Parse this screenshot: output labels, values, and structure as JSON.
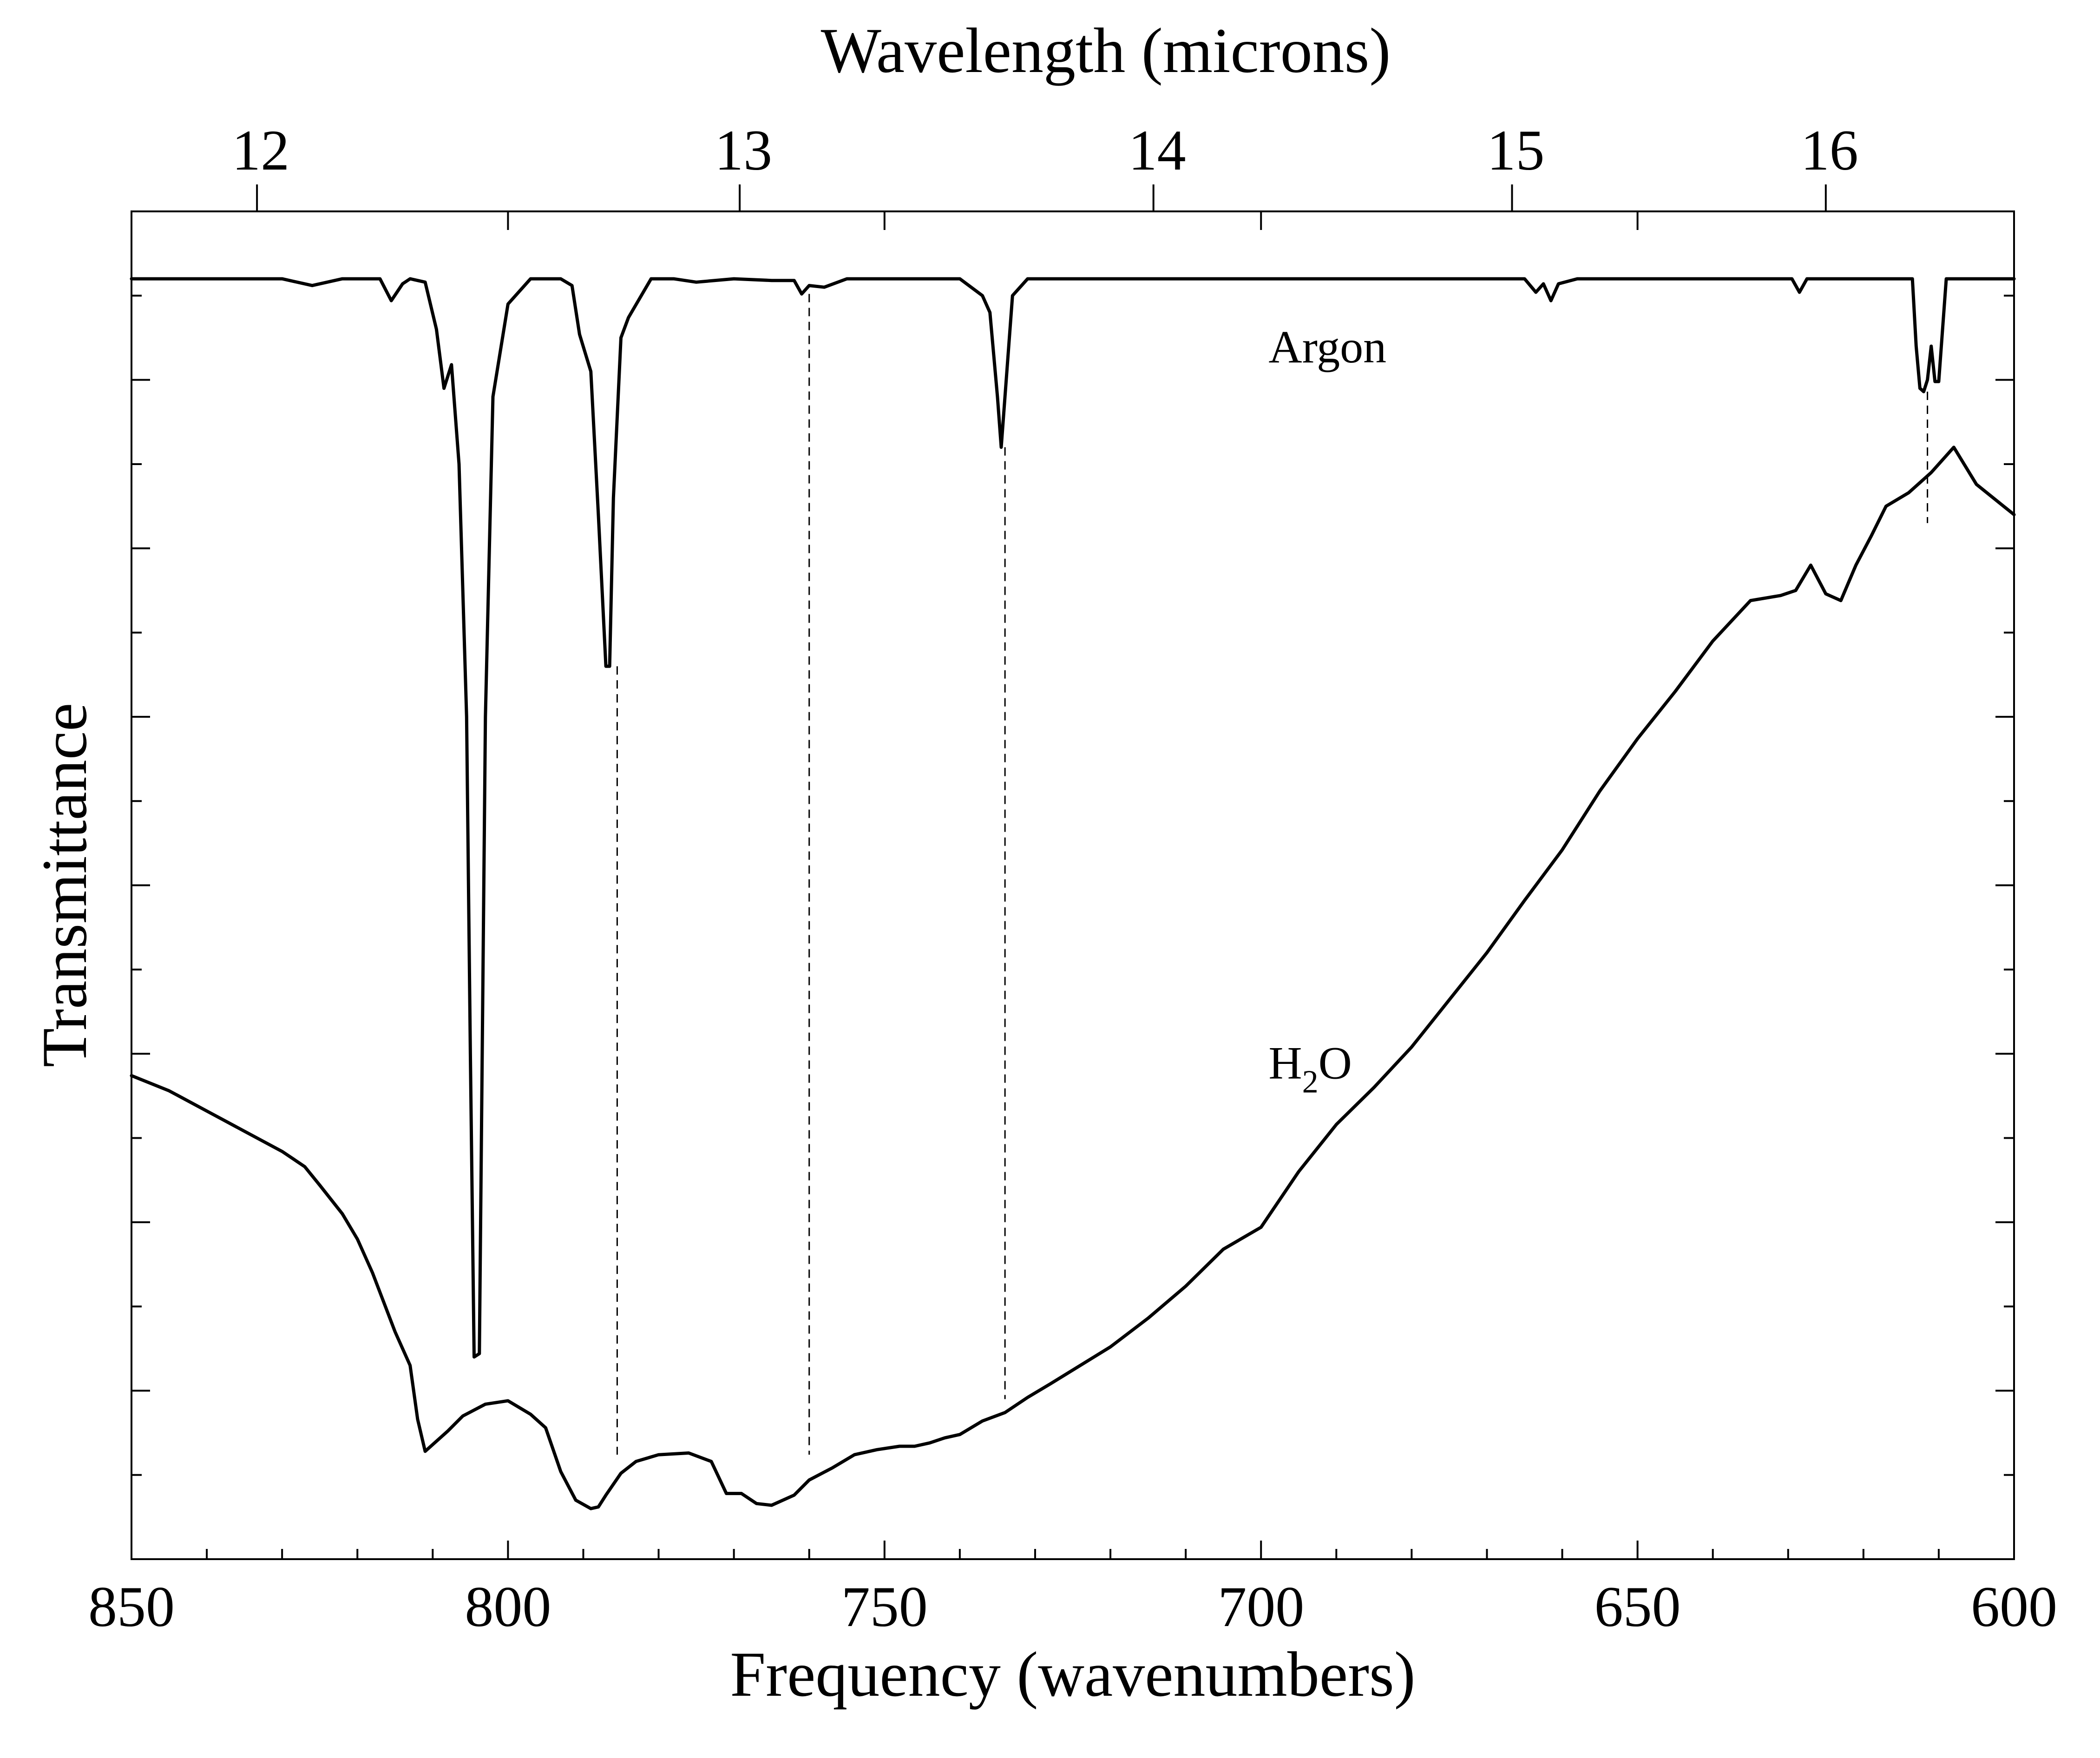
{
  "chart_data": {
    "type": "line",
    "title": "",
    "xlabel": "Frequency (wavenumbers)",
    "ylabel": "Transmittance",
    "top_xlabel": "Wavelength (microns)",
    "xlim": [
      850,
      600
    ],
    "ylim": [
      0,
      8
    ],
    "grid": false,
    "x_ticks": [
      850,
      800,
      750,
      700,
      650,
      600
    ],
    "top_ticks": [
      12,
      13,
      14,
      15,
      16
    ],
    "series": [
      {
        "name": "Argon",
        "x": [
          850,
          840,
          830,
          826,
          822,
          817,
          815.5,
          814,
          813,
          811,
          809.5,
          808.5,
          807.5,
          806.5,
          805.5,
          805,
          804.5,
          803.8,
          803,
          802,
          800,
          797,
          793,
          791.5,
          790.5,
          789,
          788,
          787,
          786.5,
          786,
          785,
          784,
          781,
          778,
          775,
          770,
          765,
          762,
          761,
          760,
          758,
          755,
          750,
          745,
          740,
          737,
          736,
          735,
          734.5,
          734,
          733,
          731,
          728,
          720,
          700,
          680,
          665,
          663.5,
          662.5,
          661.5,
          660.5,
          658,
          640,
          629.5,
          628.5,
          627.5,
          625,
          615,
          613.5,
          613,
          612.5,
          612,
          611.5,
          611,
          610.5,
          610,
          609,
          605,
          600
        ],
        "y": [
          7.6,
          7.6,
          7.6,
          7.56,
          7.6,
          7.6,
          7.47,
          7.57,
          7.6,
          7.58,
          7.3,
          6.95,
          7.09,
          6.5,
          5.0,
          3.0,
          1.2,
          1.22,
          5.0,
          6.9,
          7.45,
          7.6,
          7.6,
          7.56,
          7.27,
          7.05,
          6.2,
          5.3,
          5.3,
          6.3,
          7.25,
          7.37,
          7.6,
          7.6,
          7.58,
          7.6,
          7.59,
          7.59,
          7.51,
          7.56,
          7.55,
          7.6,
          7.6,
          7.6,
          7.6,
          7.5,
          7.4,
          6.9,
          6.6,
          6.9,
          7.5,
          7.6,
          7.6,
          7.6,
          7.6,
          7.6,
          7.6,
          7.52,
          7.57,
          7.47,
          7.57,
          7.6,
          7.6,
          7.6,
          7.52,
          7.6,
          7.6,
          7.6,
          7.6,
          7.2,
          6.95,
          6.93,
          7.0,
          7.2,
          6.99,
          6.99,
          7.6,
          7.6,
          7.6
        ]
      },
      {
        "name": "H2O",
        "x": [
          850,
          845,
          840,
          835,
          830,
          827,
          825,
          822,
          820,
          818,
          815,
          813,
          812,
          811,
          810,
          808,
          806,
          803,
          800,
          797,
          795,
          793,
          791,
          789,
          788,
          787,
          785,
          783,
          780,
          776,
          773,
          771,
          769,
          767,
          765,
          762,
          760,
          757,
          754,
          751,
          748,
          746,
          744,
          742,
          740,
          737,
          734,
          731,
          728,
          724,
          720,
          715,
          710,
          705,
          700,
          695,
          690,
          685,
          680,
          675,
          670,
          665,
          660,
          655,
          650,
          645,
          640,
          635,
          631,
          629,
          627,
          625,
          623,
          621,
          619,
          617,
          614,
          611,
          608,
          605,
          600
        ],
        "y": [
          2.87,
          2.78,
          2.66,
          2.54,
          2.42,
          2.33,
          2.22,
          2.05,
          1.9,
          1.7,
          1.35,
          1.15,
          0.83,
          0.64,
          0.68,
          0.76,
          0.85,
          0.92,
          0.94,
          0.86,
          0.78,
          0.52,
          0.35,
          0.3,
          0.31,
          0.38,
          0.51,
          0.58,
          0.62,
          0.63,
          0.58,
          0.39,
          0.39,
          0.33,
          0.32,
          0.38,
          0.47,
          0.54,
          0.62,
          0.65,
          0.67,
          0.67,
          0.69,
          0.72,
          0.74,
          0.82,
          0.87,
          0.96,
          1.04,
          1.15,
          1.26,
          1.43,
          1.62,
          1.84,
          1.97,
          2.3,
          2.58,
          2.8,
          3.04,
          3.32,
          3.6,
          3.91,
          4.21,
          4.56,
          4.87,
          5.15,
          5.45,
          5.69,
          5.72,
          5.75,
          5.9,
          5.73,
          5.69,
          5.9,
          6.07,
          6.25,
          6.33,
          6.45,
          6.6,
          6.38,
          6.2
        ]
      }
    ],
    "annotations": [
      {
        "text": "Argon",
        "x": 699,
        "y": 7.2
      },
      {
        "text_main": "H",
        "text_sub": "2",
        "text_tail": "O",
        "x": 699,
        "y": 2.95
      }
    ],
    "guide_lines": [
      {
        "x": 785.5,
        "y_top": 5.3,
        "y_bottom": 0.62
      },
      {
        "x": 760,
        "y_top": 7.51,
        "y_bottom": 0.62
      },
      {
        "x": 734,
        "y_top": 6.6,
        "y_bottom": 0.95
      },
      {
        "x": 611.5,
        "y_top": 6.93,
        "y_bottom": 6.15
      }
    ]
  }
}
